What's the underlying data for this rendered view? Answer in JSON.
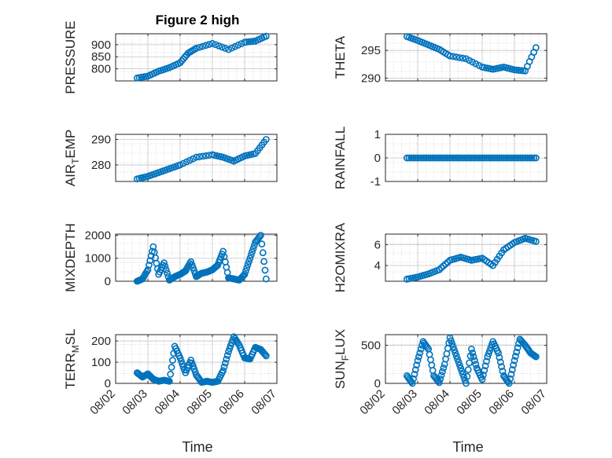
{
  "figure": {
    "title": "Figure 2 high",
    "xlabel": "Time"
  },
  "colors": {
    "marker": "#0072BD",
    "axis": "#262626",
    "grid": "#d0d0d0",
    "background": "#ffffff"
  },
  "chart_data": [
    {
      "type": "scatter",
      "ylabel": "PRESSURE",
      "title": "Figure 2 high",
      "yticks": [
        800,
        850,
        900
      ],
      "ylim": [
        750,
        945
      ],
      "grid": true,
      "show_xticks": false,
      "x": [
        "08/02 16:00",
        "08/03 00:00",
        "08/03 08:00",
        "08/03 16:00",
        "08/04 00:00",
        "08/04 06:00",
        "08/04 12:00",
        "08/05 00:00",
        "08/05 12:00",
        "08/06 00:00",
        "08/06 08:00",
        "08/06 16:00"
      ],
      "y": [
        762,
        770,
        790,
        805,
        825,
        865,
        885,
        905,
        880,
        910,
        915,
        935
      ]
    },
    {
      "type": "scatter",
      "ylabel": "THETA",
      "yticks": [
        290,
        295
      ],
      "ylim": [
        289.5,
        298
      ],
      "grid": true,
      "show_xticks": false,
      "x": [
        "08/02 16:00",
        "08/03 00:00",
        "08/03 08:00",
        "08/03 16:00",
        "08/04 00:00",
        "08/04 12:00",
        "08/05 00:00",
        "08/05 08:00",
        "08/05 16:00",
        "08/06 00:00",
        "08/06 08:00",
        "08/06 16:00"
      ],
      "y": [
        297.5,
        296.8,
        296.0,
        295.2,
        294.0,
        293.5,
        292.0,
        291.6,
        292.0,
        291.5,
        291.3,
        295.5
      ]
    },
    {
      "type": "scatter",
      "ylabel": "AIR_TEMP",
      "ylabel_text": "AIR",
      "ylabel_sub": "T",
      "ylabel_rest": "EMP",
      "yticks": [
        280,
        290
      ],
      "ylim": [
        273.5,
        292
      ],
      "grid": true,
      "show_xticks": false,
      "x": [
        "08/02 16:00",
        "08/03 00:00",
        "08/03 08:00",
        "08/03 16:00",
        "08/04 00:00",
        "08/04 12:00",
        "08/05 00:00",
        "08/05 08:00",
        "08/05 16:00",
        "08/06 00:00",
        "08/06 08:00",
        "08/06 16:00"
      ],
      "y": [
        274.5,
        275.5,
        277.0,
        278.5,
        280.0,
        283.0,
        284.0,
        283.0,
        281.5,
        283.5,
        284.5,
        290.0
      ]
    },
    {
      "type": "scatter",
      "ylabel": "RAINFALL",
      "yticks": [
        -1,
        0,
        1
      ],
      "ylim": [
        -1,
        1
      ],
      "grid": true,
      "show_xticks": false,
      "x": [
        "08/02 16:00",
        "08/03 00:00",
        "08/03 08:00",
        "08/03 16:00",
        "08/04 00:00",
        "08/04 08:00",
        "08/04 16:00",
        "08/05 00:00",
        "08/05 08:00",
        "08/05 16:00",
        "08/06 00:00",
        "08/06 08:00",
        "08/06 16:00"
      ],
      "y": [
        0,
        0,
        0,
        0,
        0,
        0,
        0,
        0,
        0,
        0,
        0,
        0,
        0
      ]
    },
    {
      "type": "scatter",
      "ylabel": "MIXDEPTH",
      "yticks": [
        0,
        1000,
        2000
      ],
      "ylim": [
        0,
        2050
      ],
      "grid": true,
      "show_xticks": false,
      "x": [
        "08/02 16:00",
        "08/02 20:00",
        "08/03 00:00",
        "08/03 04:00",
        "08/03 08:00",
        "08/03 12:00",
        "08/03 16:00",
        "08/03 20:00",
        "08/04 00:00",
        "08/04 04:00",
        "08/04 08:00",
        "08/04 12:00",
        "08/04 16:00",
        "08/04 20:00",
        "08/05 00:00",
        "08/05 04:00",
        "08/05 08:00",
        "08/05 12:00",
        "08/05 16:00",
        "08/05 20:00",
        "08/06 00:00",
        "08/06 04:00",
        "08/06 08:00",
        "08/06 12:00",
        "08/06 16:00"
      ],
      "y": [
        0,
        100,
        500,
        1500,
        300,
        800,
        50,
        200,
        300,
        450,
        850,
        200,
        350,
        400,
        500,
        700,
        1300,
        150,
        100,
        50,
        300,
        1000,
        1700,
        2000,
        100
      ]
    },
    {
      "type": "scatter",
      "ylabel": "H2OMIXRA",
      "yticks": [
        4,
        6
      ],
      "ylim": [
        2.5,
        7
      ],
      "grid": true,
      "show_xticks": false,
      "x": [
        "08/02 16:00",
        "08/03 00:00",
        "08/03 08:00",
        "08/03 16:00",
        "08/04 00:00",
        "08/04 08:00",
        "08/04 16:00",
        "08/05 00:00",
        "08/05 08:00",
        "08/05 16:00",
        "08/06 00:00",
        "08/06 08:00",
        "08/06 16:00"
      ],
      "y": [
        2.7,
        2.9,
        3.2,
        3.6,
        4.5,
        4.8,
        4.5,
        4.7,
        4.0,
        5.5,
        6.2,
        6.6,
        6.3
      ]
    },
    {
      "type": "scatter",
      "ylabel": "TERR_MSL",
      "ylabel_text": "TERR",
      "ylabel_sub": "M",
      "ylabel_rest": "SL",
      "yticks": [
        0,
        100,
        200
      ],
      "ylim": [
        0,
        230
      ],
      "grid": true,
      "show_xticks": true,
      "x": [
        "08/02 16:00",
        "08/02 20:00",
        "08/03 00:00",
        "08/03 04:00",
        "08/03 08:00",
        "08/03 12:00",
        "08/03 16:00",
        "08/03 20:00",
        "08/04 00:00",
        "08/04 04:00",
        "08/04 08:00",
        "08/04 12:00",
        "08/04 16:00",
        "08/04 20:00",
        "08/05 00:00",
        "08/05 04:00",
        "08/05 08:00",
        "08/05 12:00",
        "08/05 16:00",
        "08/05 20:00",
        "08/06 00:00",
        "08/06 04:00",
        "08/06 08:00",
        "08/06 12:00",
        "08/06 16:00"
      ],
      "y": [
        50,
        30,
        45,
        20,
        10,
        15,
        10,
        175,
        120,
        50,
        110,
        40,
        5,
        10,
        5,
        10,
        60,
        150,
        220,
        180,
        120,
        115,
        170,
        160,
        130
      ]
    },
    {
      "type": "scatter",
      "ylabel": "SUN_FLUX",
      "ylabel_text": "SUN",
      "ylabel_sub": "F",
      "ylabel_rest": "LUX",
      "yticks": [
        0,
        500
      ],
      "ylim": [
        0,
        640
      ],
      "grid": true,
      "show_xticks": true,
      "x": [
        "08/02 16:00",
        "08/02 20:00",
        "08/03 00:00",
        "08/03 04:00",
        "08/03 08:00",
        "08/03 12:00",
        "08/03 16:00",
        "08/03 20:00",
        "08/04 00:00",
        "08/04 04:00",
        "08/04 08:00",
        "08/04 12:00",
        "08/04 16:00",
        "08/04 20:00",
        "08/05 00:00",
        "08/05 04:00",
        "08/05 08:00",
        "08/05 12:00",
        "08/05 16:00",
        "08/05 20:00",
        "08/06 00:00",
        "08/06 04:00",
        "08/06 08:00",
        "08/06 12:00",
        "08/06 16:00"
      ],
      "y": [
        100,
        0,
        300,
        550,
        450,
        100,
        10,
        250,
        600,
        400,
        200,
        0,
        450,
        200,
        50,
        350,
        550,
        400,
        100,
        0,
        300,
        580,
        500,
        400,
        350
      ]
    }
  ],
  "xaxis": {
    "ticks": [
      "08/02",
      "08/03",
      "08/04",
      "08/05",
      "08/06",
      "08/07"
    ],
    "range": [
      "08/02",
      "08/07"
    ]
  }
}
